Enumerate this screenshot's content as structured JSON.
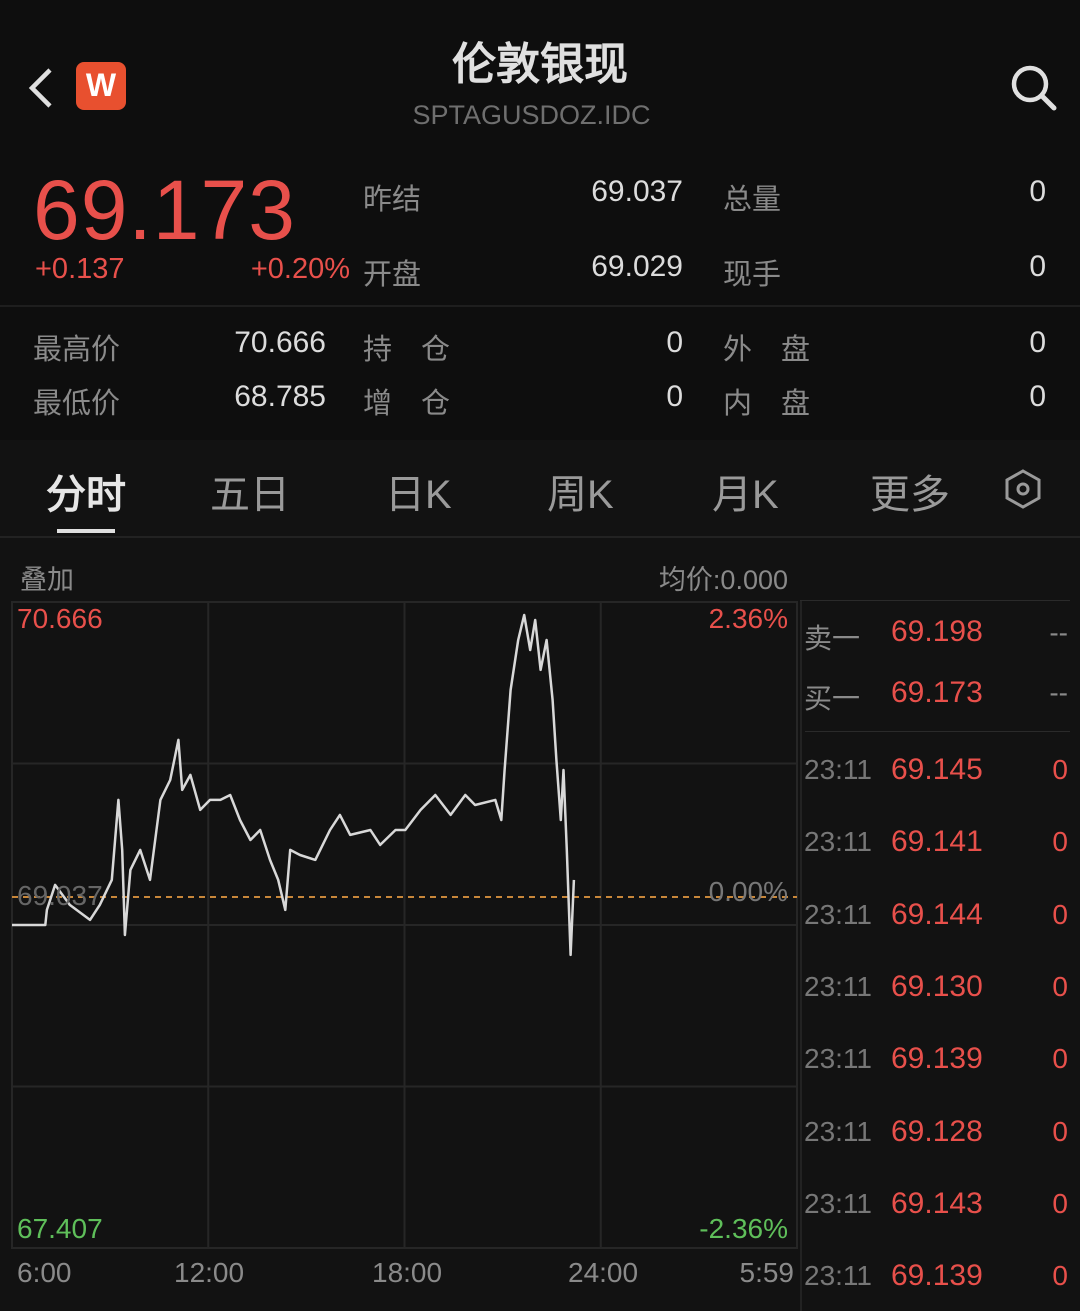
{
  "header": {
    "title": "伦敦银现",
    "code": "SPTAGUSDOZ.IDC",
    "logo_letter": "W",
    "brand_color": "#e8502f",
    "icons": [
      "back-chevron-icon",
      "search-icon"
    ]
  },
  "quote": {
    "price": "69.173",
    "change": "+0.137",
    "change_pct": "+0.20%",
    "price_color": "#e8504b"
  },
  "stats": [
    {
      "label": "昨结",
      "value": "69.037"
    },
    {
      "label": "总量",
      "value": "0"
    },
    {
      "label": "开盘",
      "value": "69.029"
    },
    {
      "label": "现手",
      "value": "0"
    },
    {
      "label": "最高价",
      "value": "70.666"
    },
    {
      "label": "持　仓",
      "value": "0"
    },
    {
      "label": "外　盘",
      "value": "0"
    },
    {
      "label": "最低价",
      "value": "68.785"
    },
    {
      "label": "增　仓",
      "value": "0"
    },
    {
      "label": "内　盘",
      "value": "0"
    }
  ],
  "tabs": [
    {
      "label": "分时",
      "active": true
    },
    {
      "label": "五日"
    },
    {
      "label": "日K"
    },
    {
      "label": "周K"
    },
    {
      "label": "月K"
    },
    {
      "label": "更多"
    }
  ],
  "chart_toolbar": {
    "overlay": "叠加",
    "avg_price": "均价:0.000"
  },
  "order_book": {
    "quotes": [
      {
        "label": "卖一",
        "price": "69.198",
        "volume": "--"
      },
      {
        "label": "买一",
        "price": "69.173",
        "volume": "--"
      }
    ],
    "trades": [
      {
        "time": "23:11",
        "price": "69.145",
        "volume": "0"
      },
      {
        "time": "23:11",
        "price": "69.141",
        "volume": "0"
      },
      {
        "time": "23:11",
        "price": "69.144",
        "volume": "0"
      },
      {
        "time": "23:11",
        "price": "69.130",
        "volume": "0"
      },
      {
        "time": "23:11",
        "price": "69.139",
        "volume": "0"
      },
      {
        "time": "23:11",
        "price": "69.128",
        "volume": "0"
      },
      {
        "time": "23:11",
        "price": "69.143",
        "volume": "0"
      },
      {
        "time": "23:11",
        "price": "69.139",
        "volume": "0"
      }
    ]
  },
  "chart_data": {
    "type": "line",
    "ylim": [
      67.407,
      70.666
    ],
    "y_left_labels": {
      "top": "70.666",
      "mid": "69.037",
      "bottom": "67.407"
    },
    "y_right_labels": {
      "top": "2.36%",
      "mid": "0.00%",
      "bottom": "-2.36%"
    },
    "reference_price": 69.037,
    "x_tick_labels": [
      "6:00",
      "12:00",
      "18:00",
      "24:00",
      "5:59"
    ],
    "grid": true,
    "line_color": "#d8d8d8",
    "reference_line_color": "#c8873a",
    "x": [
      "6:00",
      "7:01",
      "7:04",
      "7:19",
      "7:46",
      "8:23",
      "8:41",
      "9:03",
      "9:15",
      "9:22",
      "9:27",
      "9:37",
      "9:55",
      "10:13",
      "10:32",
      "10:50",
      "11:05",
      "11:12",
      "11:27",
      "11:45",
      "12:03",
      "12:22",
      "12:40",
      "12:58",
      "13:17",
      "13:35",
      "13:53",
      "14:08",
      "14:21",
      "14:30",
      "14:48",
      "15:16",
      "15:43",
      "16:01",
      "16:20",
      "16:57",
      "17:15",
      "17:43",
      "18:01",
      "18:29",
      "18:56",
      "19:24",
      "19:51",
      "20:09",
      "20:46",
      "20:57",
      "21:03",
      "21:14",
      "21:28",
      "21:39",
      "21:50",
      "21:59",
      "22:09",
      "22:20",
      "22:31",
      "22:38",
      "22:46",
      "22:51",
      "22:57",
      "23:04",
      "23:10"
    ],
    "y": [
      68.877,
      68.877,
      68.963,
      69.106,
      68.992,
      68.906,
      68.992,
      69.135,
      69.592,
      69.306,
      68.82,
      69.192,
      69.306,
      69.135,
      69.592,
      69.706,
      69.935,
      69.649,
      69.735,
      69.535,
      69.592,
      69.592,
      69.62,
      69.477,
      69.363,
      69.42,
      69.249,
      69.135,
      68.963,
      69.306,
      69.277,
      69.249,
      69.42,
      69.506,
      69.392,
      69.42,
      69.335,
      69.42,
      69.42,
      69.535,
      69.62,
      69.506,
      69.62,
      69.563,
      69.592,
      69.477,
      69.763,
      70.22,
      70.506,
      70.649,
      70.449,
      70.62,
      70.335,
      70.506,
      70.163,
      69.82,
      69.477,
      69.763,
      69.306,
      68.706,
      69.135
    ]
  }
}
